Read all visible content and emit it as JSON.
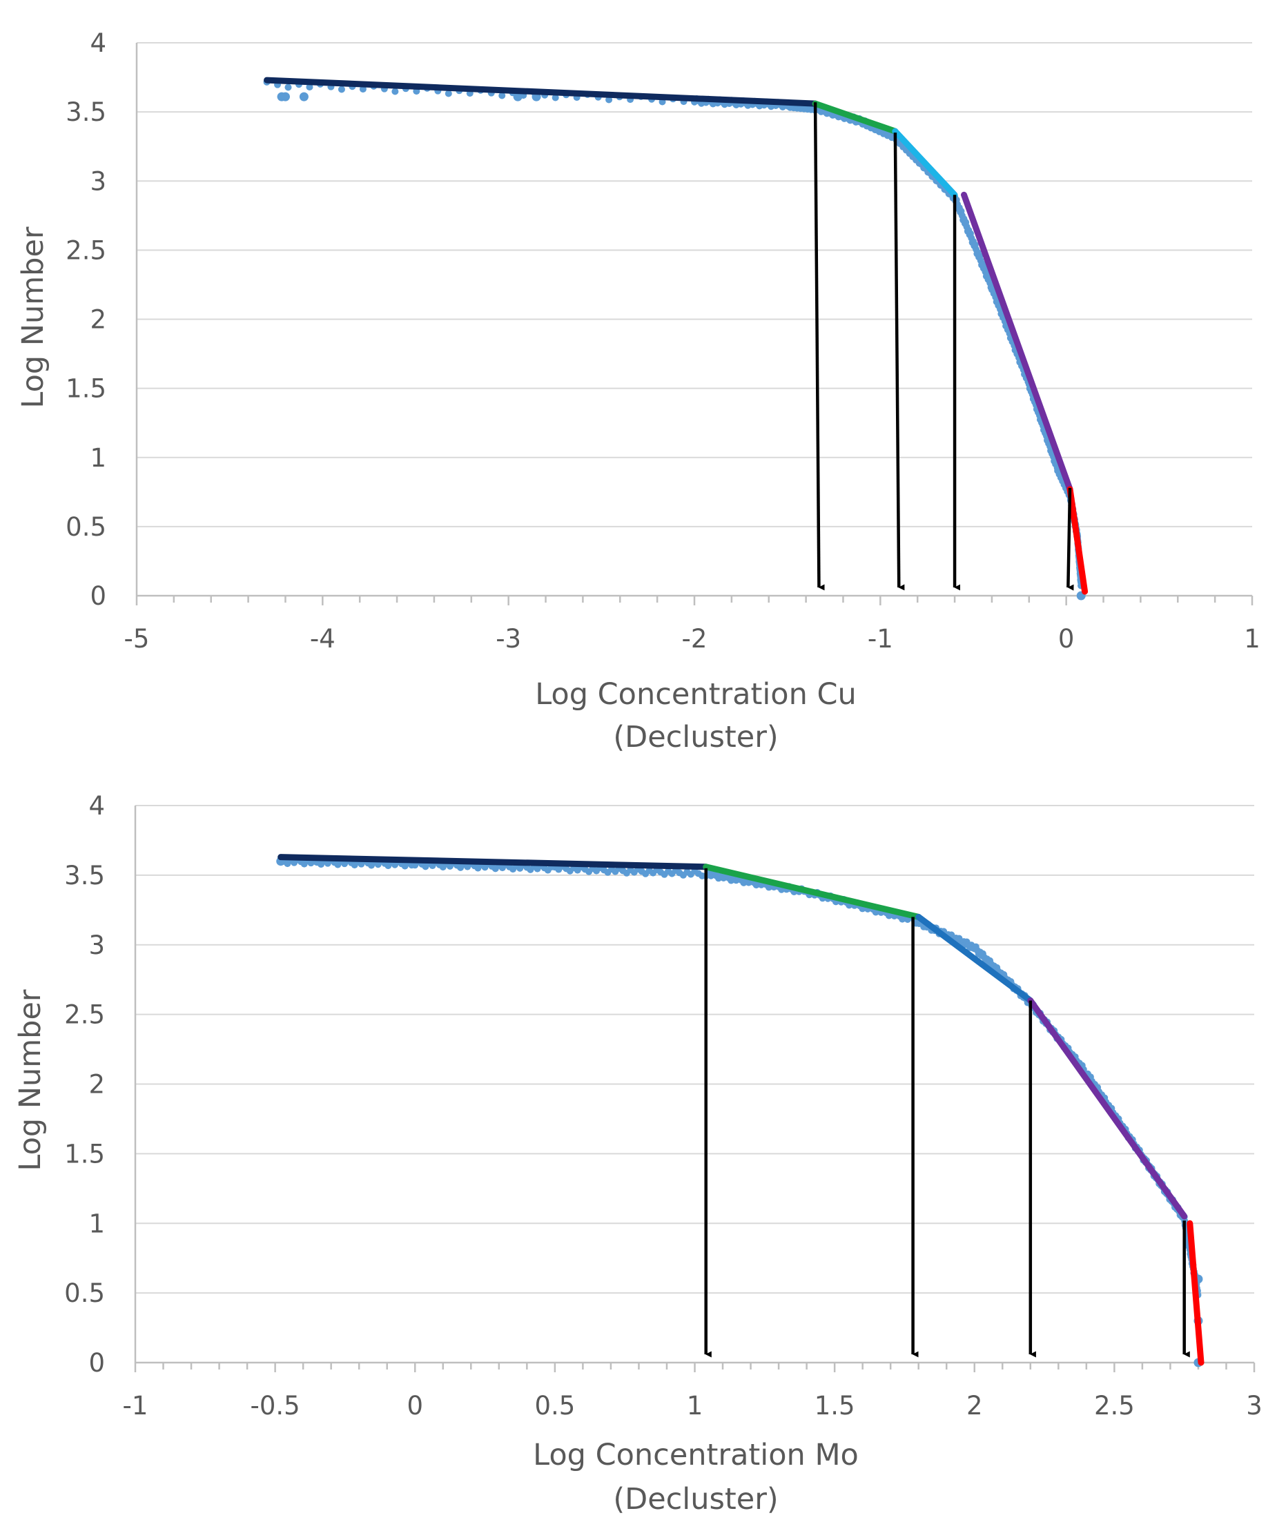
{
  "colors": {
    "scatter": "#5b9bd5",
    "segments": [
      "#0f2a5e",
      "#1aa34a",
      "#1cb4e8",
      "#7030a0",
      "#ff0000"
    ],
    "segments_mo": [
      "#0f2a5e",
      "#1aa34a",
      "#1f72bd",
      "#7030a0",
      "#ff0000"
    ],
    "arrow": "#000000"
  },
  "chart_data": [
    {
      "type": "scatter",
      "title": "",
      "xlabel_line1": "Log Concentration Cu",
      "xlabel_line2": "(Decluster)",
      "ylabel": "Log Number",
      "xlim": [
        -5,
        1
      ],
      "ylim": [
        0,
        4
      ],
      "xticks": [
        "-5",
        "-4",
        "-3",
        "-2",
        "-1",
        "0",
        "1"
      ],
      "yticks": [
        "0",
        "0.5",
        "1",
        "1.5",
        "2",
        "2.5",
        "3",
        "3.5",
        "4"
      ],
      "outliers": [
        [
          -4.22,
          3.61
        ],
        [
          -4.2,
          3.61
        ],
        [
          -4.1,
          3.61
        ],
        [
          -2.95,
          3.61
        ],
        [
          -2.85,
          3.61
        ],
        [
          0.08,
          0.0
        ]
      ],
      "curve": [
        [
          -4.3,
          3.72
        ],
        [
          -2.0,
          3.6
        ],
        [
          -1.5,
          3.57
        ],
        [
          -1.35,
          3.55
        ],
        [
          -1.1,
          3.45
        ],
        [
          -0.92,
          3.34
        ],
        [
          -0.78,
          3.15
        ],
        [
          -0.6,
          2.9
        ],
        [
          -0.4,
          2.25
        ],
        [
          -0.2,
          1.55
        ],
        [
          -0.05,
          0.95
        ],
        [
          0.02,
          0.75
        ],
        [
          0.06,
          0.45
        ],
        [
          0.08,
          0.1
        ]
      ],
      "segments": [
        {
          "x": [
            -4.3,
            -1.35
          ],
          "y": [
            3.73,
            3.56
          ]
        },
        {
          "x": [
            -1.35,
            -0.92
          ],
          "y": [
            3.56,
            3.36
          ]
        },
        {
          "x": [
            -0.92,
            -0.6
          ],
          "y": [
            3.36,
            2.9
          ]
        },
        {
          "x": [
            -0.55,
            0.02
          ],
          "y": [
            2.9,
            0.77
          ]
        },
        {
          "x": [
            0.02,
            0.1
          ],
          "y": [
            0.77,
            0.03
          ]
        }
      ],
      "arrows": [
        {
          "x_top": -1.35,
          "y_top": 3.57,
          "x_bottom": -1.33
        },
        {
          "x_top": -0.92,
          "y_top": 3.35,
          "x_bottom": -0.9
        },
        {
          "x_top": -0.6,
          "y_top": 2.9,
          "x_bottom": -0.6
        },
        {
          "x_top": 0.02,
          "y_top": 0.78,
          "x_bottom": 0.01
        }
      ]
    },
    {
      "type": "scatter",
      "title": "",
      "xlabel_line1": "Log Concentration Mo",
      "xlabel_line2": "(Decluster)",
      "ylabel": "Log Number",
      "xlim": [
        -1,
        3
      ],
      "ylim": [
        0,
        4
      ],
      "xticks": [
        "-1",
        "-0.5",
        "0",
        "0.5",
        "1",
        "1.5",
        "2",
        "2.5",
        "3"
      ],
      "yticks": [
        "0",
        "0.5",
        "1",
        "1.5",
        "2",
        "2.5",
        "3",
        "3.5",
        "4"
      ],
      "outliers": [
        [
          -0.48,
          3.6
        ],
        [
          -0.35,
          3.6
        ],
        [
          2.8,
          0.6
        ],
        [
          2.8,
          0.3
        ],
        [
          2.8,
          0.0
        ]
      ],
      "curve": [
        [
          -0.48,
          3.62
        ],
        [
          0.0,
          3.6
        ],
        [
          0.5,
          3.57
        ],
        [
          1.04,
          3.53
        ],
        [
          1.4,
          3.4
        ],
        [
          1.78,
          3.2
        ],
        [
          2.0,
          3.0
        ],
        [
          2.2,
          2.6
        ],
        [
          2.4,
          2.1
        ],
        [
          2.6,
          1.5
        ],
        [
          2.75,
          1.05
        ],
        [
          2.8,
          0.5
        ]
      ],
      "segments": [
        {
          "x": [
            -0.48,
            1.04
          ],
          "y": [
            3.63,
            3.56
          ]
        },
        {
          "x": [
            1.04,
            1.8
          ],
          "y": [
            3.56,
            3.2
          ]
        },
        {
          "x": [
            1.8,
            2.2
          ],
          "y": [
            3.2,
            2.6
          ]
        },
        {
          "x": [
            2.2,
            2.75
          ],
          "y": [
            2.6,
            1.05
          ]
        },
        {
          "x": [
            2.77,
            2.81
          ],
          "y": [
            1.0,
            0.0
          ]
        }
      ],
      "arrows": [
        {
          "x_top": 1.04,
          "y_top": 3.55,
          "x_bottom": 1.04
        },
        {
          "x_top": 1.78,
          "y_top": 3.2,
          "x_bottom": 1.78
        },
        {
          "x_top": 2.2,
          "y_top": 2.6,
          "x_bottom": 2.2
        },
        {
          "x_top": 2.75,
          "y_top": 1.02,
          "x_bottom": 2.75
        }
      ]
    }
  ]
}
